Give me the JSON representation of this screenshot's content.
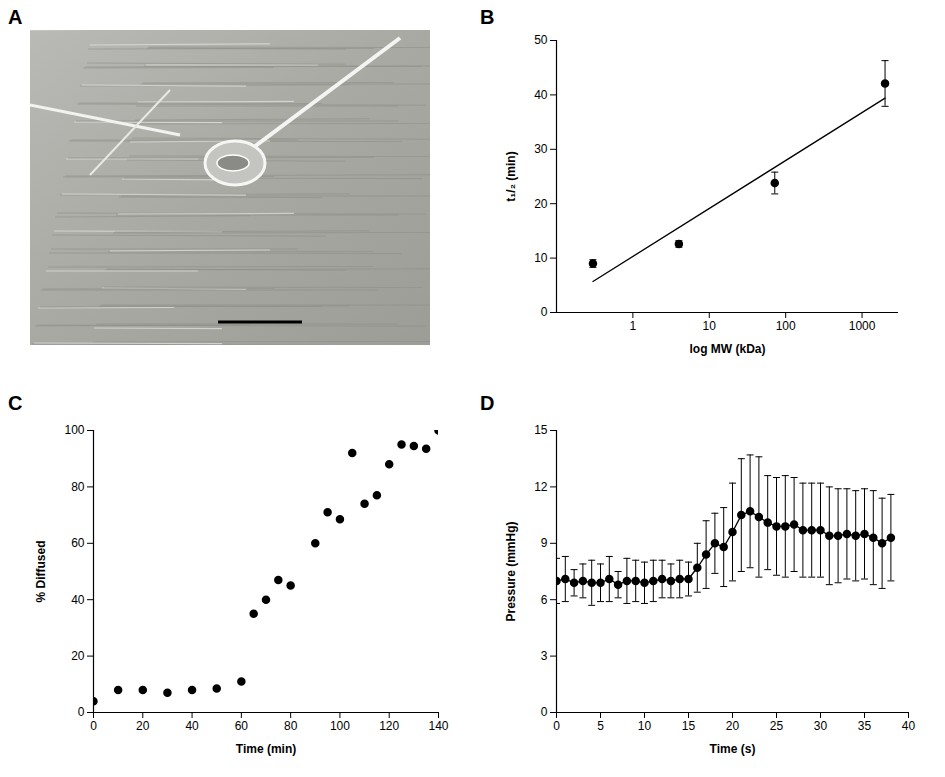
{
  "chart_data": [
    {
      "panel": "A",
      "type": "image"
    },
    {
      "panel": "B",
      "type": "scatter",
      "x_label": "log MW (kDa)",
      "y_label": "t₁/₂ (min)",
      "log": "x",
      "xlim": [
        0.1,
        3000
      ],
      "xticks": [
        1,
        10,
        100,
        1000
      ],
      "ylim": [
        0,
        50
      ],
      "yticks": [
        0,
        10,
        20,
        30,
        40,
        50
      ],
      "series": [
        {
          "type": "scatter",
          "marker": "circle",
          "color": "#000000",
          "x": [
            0.3,
            4,
            72,
            2000
          ],
          "values": [
            9,
            12.6,
            23.8,
            42.1
          ],
          "errors": [
            0.7,
            0.6,
            2,
            4.2
          ]
        },
        {
          "type": "line",
          "color": "#000000",
          "x": [
            0.3,
            2000
          ],
          "values": [
            5.7,
            39.4
          ]
        }
      ]
    },
    {
      "panel": "C",
      "type": "scatter",
      "x_label": "Time (min)",
      "y_label": "% Diffused",
      "marker": "circle",
      "color": "#000000",
      "xlim": [
        0,
        140
      ],
      "xticks": [
        0,
        20,
        40,
        60,
        80,
        100,
        120,
        140
      ],
      "ylim": [
        0,
        100
      ],
      "yticks": [
        0,
        20,
        40,
        60,
        80,
        100
      ],
      "x": [
        0,
        10,
        20,
        30,
        40,
        50,
        60,
        65,
        70,
        75,
        80,
        90,
        95,
        100,
        105,
        110,
        115,
        120,
        125,
        130,
        135,
        140
      ],
      "values": [
        4,
        8,
        8,
        7,
        8,
        8.5,
        11,
        35,
        40,
        47,
        45,
        60,
        71,
        68.5,
        92,
        74,
        77,
        88,
        95,
        94.5,
        93.5,
        100
      ]
    },
    {
      "panel": "D",
      "type": "line",
      "x_label": "Time (s)",
      "y_label": "Pressure (mmHg)",
      "xlim": [
        0,
        40
      ],
      "xticks": [
        0,
        5,
        10,
        15,
        20,
        25,
        30,
        35,
        40
      ],
      "ylim": [
        0,
        15
      ],
      "yticks": [
        0,
        3,
        6,
        9,
        12,
        15
      ],
      "x": [
        0,
        1,
        2,
        3,
        4,
        5,
        6,
        7,
        8,
        9,
        10,
        11,
        12,
        13,
        14,
        15,
        16,
        17,
        18,
        19,
        20,
        21,
        22,
        23,
        24,
        25,
        26,
        27,
        28,
        29,
        30,
        31,
        32,
        33,
        34,
        35,
        36,
        37,
        38
      ],
      "series": [
        {
          "type": "line",
          "marker": "circle",
          "color": "#000000",
          "values": [
            7.0,
            7.1,
            6.9,
            7.0,
            6.9,
            6.9,
            7.1,
            6.8,
            7.0,
            7.0,
            6.9,
            7.0,
            7.1,
            7.0,
            7.1,
            7.1,
            7.7,
            8.4,
            9.0,
            8.8,
            9.6,
            10.5,
            10.7,
            10.4,
            10.1,
            9.9,
            9.9,
            10.0,
            9.7,
            9.7,
            9.7,
            9.4,
            9.4,
            9.5,
            9.4,
            9.5,
            9.3,
            9.0,
            9.3
          ],
          "errors": [
            1.2,
            1.2,
            0.7,
            0.9,
            1.2,
            1.0,
            1.2,
            0.7,
            1.2,
            1.1,
            1.1,
            1.1,
            1.0,
            0.9,
            1.0,
            0.9,
            1.3,
            1.8,
            1.6,
            2.1,
            2.6,
            3.0,
            3.0,
            3.2,
            2.5,
            2.6,
            2.7,
            2.5,
            2.5,
            2.5,
            2.5,
            2.6,
            2.5,
            2.4,
            2.4,
            2.4,
            2.5,
            2.4,
            2.3
          ]
        }
      ]
    }
  ]
}
